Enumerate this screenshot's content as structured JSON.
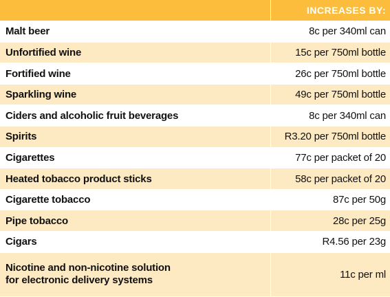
{
  "header": {
    "item": "",
    "increase": "INCREASES BY:"
  },
  "rows": [
    {
      "item": "Malt beer",
      "increase": "8c per 340ml can"
    },
    {
      "item": "Unfortified wine",
      "increase": "15c per 750ml bottle"
    },
    {
      "item": "Fortified wine",
      "increase": "26c per 750ml bottle"
    },
    {
      "item": "Sparkling wine",
      "increase": "49c per 750ml bottle"
    },
    {
      "item": "Ciders and alcoholic fruit beverages",
      "increase": "8c per 340ml can"
    },
    {
      "item": "Spirits",
      "increase": "R3.20 per 750ml bottle"
    },
    {
      "item": "Cigarettes",
      "increase": "77c per packet of 20"
    },
    {
      "item": "Heated tobacco product sticks",
      "increase": "58c per packet of 20"
    },
    {
      "item": "Cigarette tobacco",
      "increase": "87c per 50g"
    },
    {
      "item": "Pipe tobacco",
      "increase": "28c per 25g"
    },
    {
      "item": "Cigars",
      "increase": "R4.56 per 23g"
    },
    {
      "item_lines": [
        "Nicotine and non-nicotine solution",
        "for electronic delivery systems"
      ],
      "increase": "11c per ml"
    }
  ],
  "colors": {
    "header_bg": "#fbbd3b",
    "stripe_bg": "#fde9c2",
    "header_text": "#ffffff"
  }
}
